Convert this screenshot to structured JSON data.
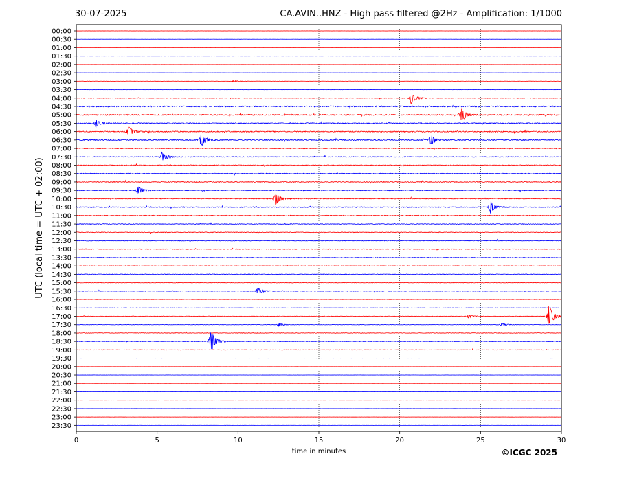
{
  "chart_data": {
    "type": "line",
    "title_left": "30-07-2025",
    "title_right": "CA.AVIN..HNZ - High pass filtered @2Hz - Amplification: 1/1000",
    "xlabel": "time in minutes",
    "ylabel": "UTC (local time = UTC + 02:00)",
    "xlim": [
      0,
      30
    ],
    "x_ticks": [
      "0",
      "5",
      "10",
      "15",
      "20",
      "25",
      "30"
    ],
    "vertical_grid_minutes": [
      5,
      10,
      15,
      20,
      25
    ],
    "row_labels": [
      "00:00",
      "00:30",
      "01:00",
      "01:30",
      "02:00",
      "02:30",
      "03:00",
      "03:30",
      "04:00",
      "04:30",
      "05:00",
      "05:30",
      "06:00",
      "06:30",
      "07:00",
      "07:30",
      "08:00",
      "08:30",
      "09:00",
      "09:30",
      "10:00",
      "10:30",
      "11:00",
      "11:30",
      "12:00",
      "12:30",
      "13:00",
      "13:30",
      "14:00",
      "14:30",
      "15:00",
      "15:30",
      "16:00",
      "16:30",
      "17:00",
      "17:30",
      "18:00",
      "18:30",
      "19:00",
      "19:30",
      "20:00",
      "20:30",
      "21:00",
      "21:30",
      "22:00",
      "22:30",
      "23:00",
      "23:30"
    ],
    "trace_colors": [
      "#ff0000",
      "#0000ff"
    ],
    "row_noise_level": [
      0.1,
      0.1,
      0.1,
      0.1,
      0.1,
      0.1,
      0.2,
      0.2,
      0.4,
      0.9,
      0.9,
      0.8,
      0.8,
      0.8,
      0.6,
      0.6,
      0.6,
      0.6,
      0.6,
      0.6,
      0.6,
      0.7,
      0.6,
      0.5,
      0.5,
      0.5,
      0.5,
      0.5,
      0.4,
      0.5,
      0.4,
      0.4,
      0.3,
      0.3,
      0.4,
      0.3,
      0.4,
      0.5,
      0.4,
      0.1,
      0.1,
      0.1,
      0.1,
      0.1,
      0.1,
      0.1,
      0.1,
      0.1
    ],
    "events": [
      {
        "row": 6,
        "minute": 9.7,
        "amp": 0.3
      },
      {
        "row": 8,
        "minute": 20.7,
        "amp": 2.0
      },
      {
        "row": 10,
        "minute": 23.8,
        "amp": 2.5
      },
      {
        "row": 11,
        "minute": 1.2,
        "amp": 1.5
      },
      {
        "row": 12,
        "minute": 3.2,
        "amp": 1.7
      },
      {
        "row": 13,
        "minute": 7.7,
        "amp": 2.3
      },
      {
        "row": 13,
        "minute": 21.9,
        "amp": 2.0
      },
      {
        "row": 15,
        "minute": 5.3,
        "amp": 1.6
      },
      {
        "row": 19,
        "minute": 3.8,
        "amp": 1.5
      },
      {
        "row": 20,
        "minute": 12.3,
        "amp": 2.0
      },
      {
        "row": 21,
        "minute": 25.6,
        "amp": 2.3
      },
      {
        "row": 31,
        "minute": 11.2,
        "amp": 1.2
      },
      {
        "row": 34,
        "minute": 29.2,
        "amp": 4.0
      },
      {
        "row": 35,
        "minute": 12.5,
        "amp": 0.6
      },
      {
        "row": 35,
        "minute": 26.3,
        "amp": 0.5
      },
      {
        "row": 37,
        "minute": 8.3,
        "amp": 4.2
      },
      {
        "row": 34,
        "minute": 24.2,
        "amp": 0.6
      }
    ]
  },
  "copyright": "©ICGC 2025"
}
